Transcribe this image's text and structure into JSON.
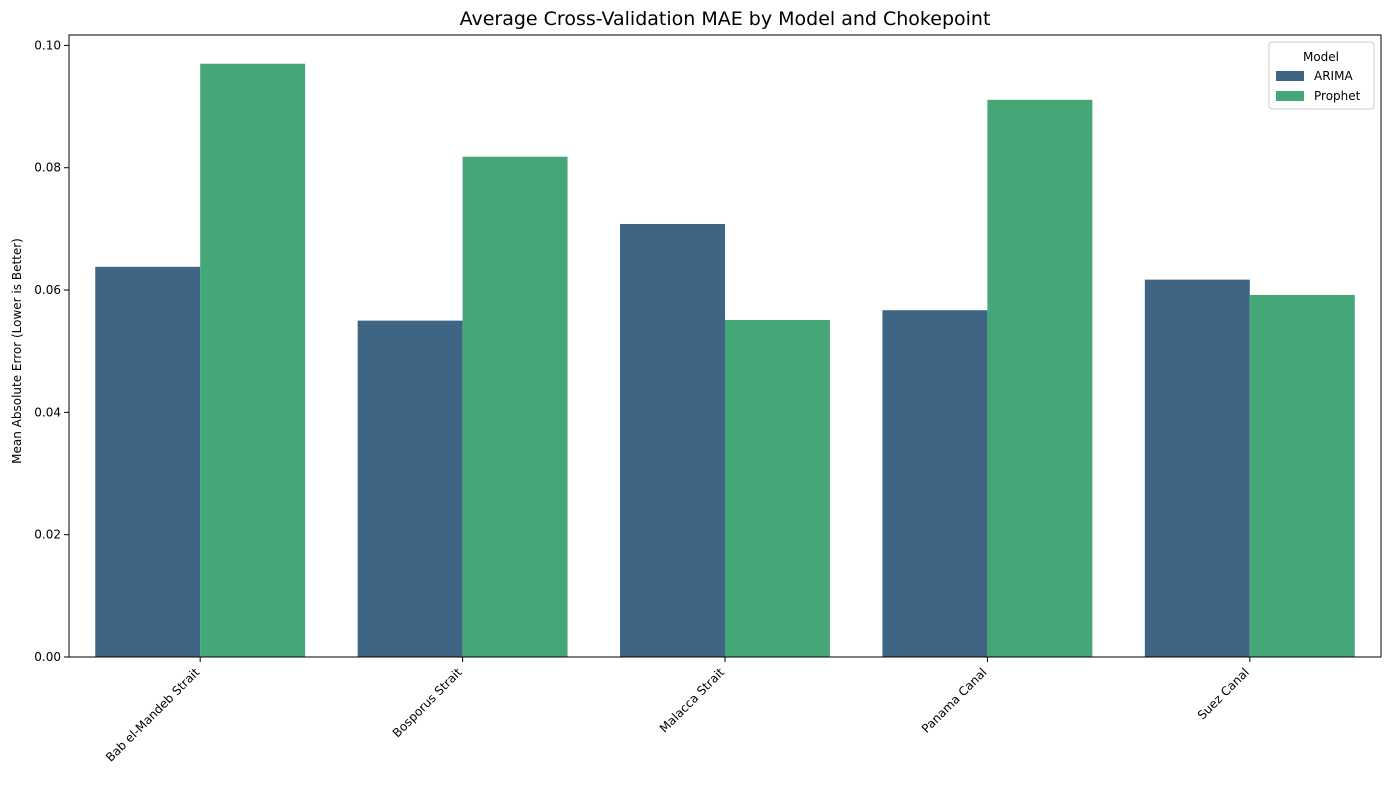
{
  "chart_data": {
    "type": "bar",
    "title": "Average Cross-Validation MAE by Model and Chokepoint",
    "xlabel": "",
    "ylabel": "Mean Absolute Error (Lower is Better)",
    "categories": [
      "Bab el-Mandeb Strait",
      "Bosporus Strait",
      "Malacca Strait",
      "Panama Canal",
      "Suez Canal"
    ],
    "series": [
      {
        "name": "ARIMA",
        "color": "#3e6583",
        "values": [
          0.0638,
          0.055,
          0.0708,
          0.0567,
          0.0617
        ]
      },
      {
        "name": "Prophet",
        "color": "#45a778",
        "values": [
          0.097,
          0.0818,
          0.0551,
          0.0911,
          0.0592
        ]
      }
    ],
    "ylim": [
      0,
      0.1017
    ],
    "yticks": [
      0.0,
      0.02,
      0.04,
      0.06,
      0.08,
      0.1
    ],
    "ytick_labels": [
      "0.00",
      "0.02",
      "0.04",
      "0.06",
      "0.08",
      "0.10"
    ],
    "grid": false,
    "legend": {
      "title": "Model",
      "position": "top-right"
    }
  }
}
